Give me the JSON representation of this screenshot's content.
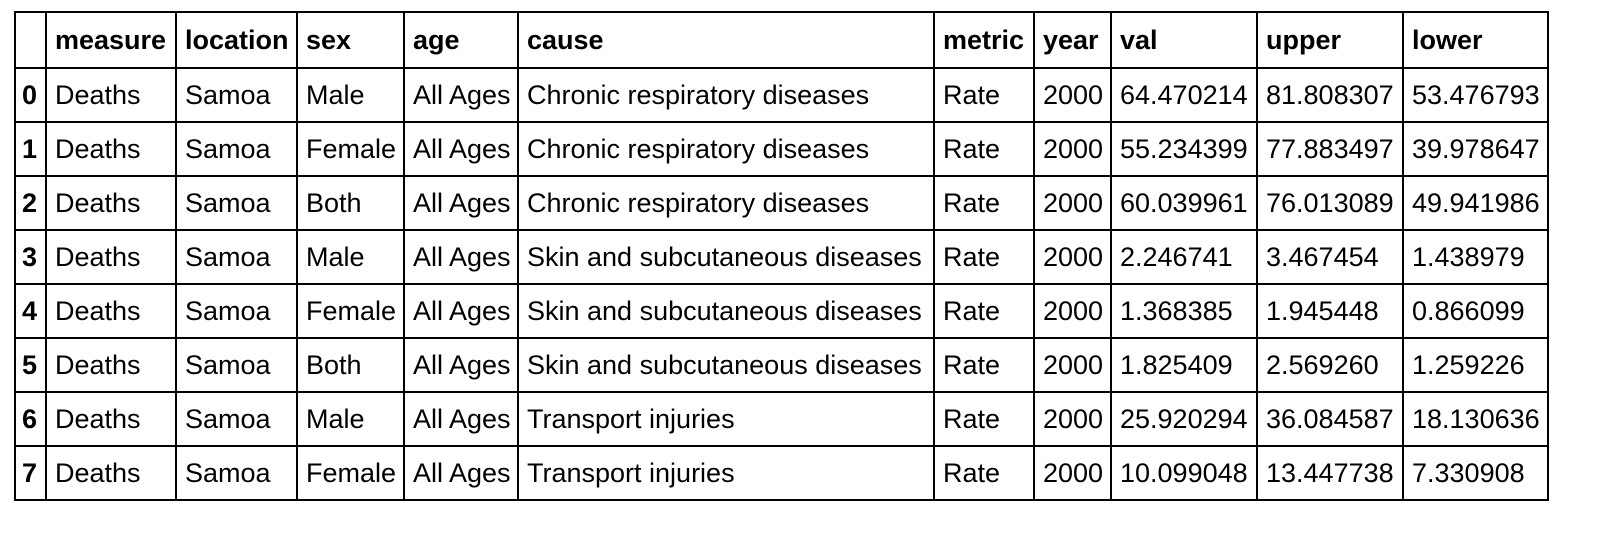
{
  "table": {
    "columns": [
      "",
      "measure",
      "location",
      "sex",
      "age",
      "cause",
      "metric",
      "year",
      "val",
      "upper",
      "lower"
    ],
    "rows": [
      {
        "index": "0",
        "cells": [
          "Deaths",
          "Samoa",
          "Male",
          "All Ages",
          "Chronic respiratory diseases",
          "Rate",
          "2000",
          "64.470214",
          "81.808307",
          "53.476793"
        ]
      },
      {
        "index": "1",
        "cells": [
          "Deaths",
          "Samoa",
          "Female",
          "All Ages",
          "Chronic respiratory diseases",
          "Rate",
          "2000",
          "55.234399",
          "77.883497",
          "39.978647"
        ]
      },
      {
        "index": "2",
        "cells": [
          "Deaths",
          "Samoa",
          "Both",
          "All Ages",
          "Chronic respiratory diseases",
          "Rate",
          "2000",
          "60.039961",
          "76.013089",
          "49.941986"
        ]
      },
      {
        "index": "3",
        "cells": [
          "Deaths",
          "Samoa",
          "Male",
          "All Ages",
          "Skin and subcutaneous diseases",
          "Rate",
          "2000",
          "2.246741",
          "3.467454",
          "1.438979"
        ]
      },
      {
        "index": "4",
        "cells": [
          "Deaths",
          "Samoa",
          "Female",
          "All Ages",
          "Skin and subcutaneous diseases",
          "Rate",
          "2000",
          "1.368385",
          "1.945448",
          "0.866099"
        ]
      },
      {
        "index": "5",
        "cells": [
          "Deaths",
          "Samoa",
          "Both",
          "All Ages",
          "Skin and subcutaneous diseases",
          "Rate",
          "2000",
          "1.825409",
          "2.569260",
          "1.259226"
        ]
      },
      {
        "index": "6",
        "cells": [
          "Deaths",
          "Samoa",
          "Male",
          "All Ages",
          "Transport injuries",
          "Rate",
          "2000",
          "25.920294",
          "36.084587",
          "18.130636"
        ]
      },
      {
        "index": "7",
        "cells": [
          "Deaths",
          "Samoa",
          "Female",
          "All Ages",
          "Transport injuries",
          "Rate",
          "2000",
          "10.099048",
          "13.447738",
          "7.330908"
        ]
      }
    ]
  }
}
